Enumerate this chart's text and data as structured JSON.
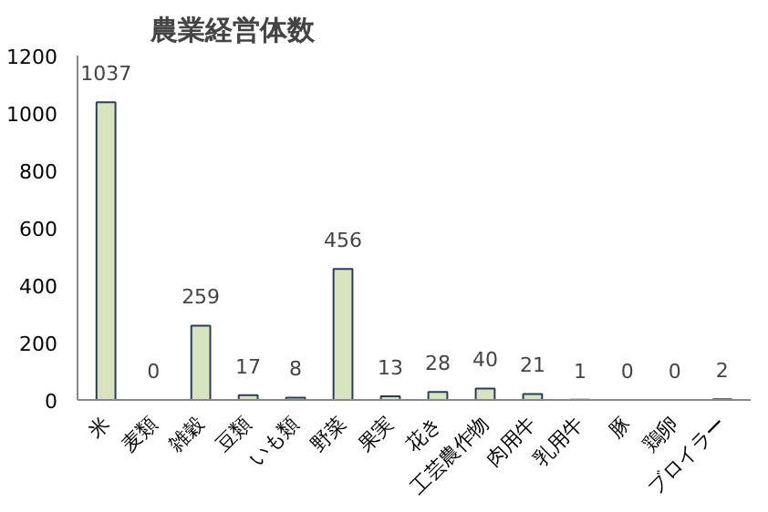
{
  "chart_data": {
    "type": "bar",
    "title": "農業経営体数",
    "categories": [
      "米",
      "麦類",
      "雑穀",
      "豆類",
      "いも類",
      "野菜",
      "果実",
      "花き",
      "工芸農作物",
      "肉用牛",
      "乳用牛",
      "豚",
      "鶏卵",
      "ブロイラー"
    ],
    "values": [
      1037,
      0,
      259,
      17,
      8,
      456,
      13,
      28,
      40,
      21,
      1,
      0,
      0,
      2
    ],
    "color": "#d7e4bd",
    "ylim": [
      0,
      1200
    ],
    "yticks": [
      0,
      200,
      400,
      600,
      800,
      1000,
      1200
    ],
    "grid": false,
    "data_labels": true
  }
}
